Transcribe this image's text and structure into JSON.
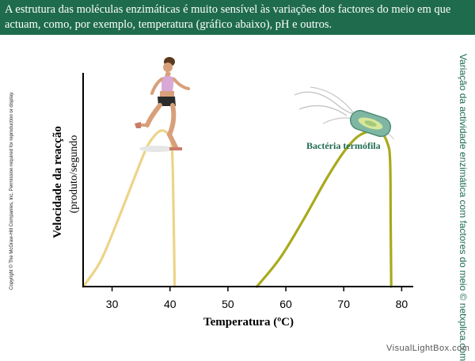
{
  "header": {
    "text": "A estrutura das moléculas enzimáticas é muito sensível às variações dos factores do meio em que actuam, como, por exemplo, temperatura (gráfico abaixo), pH e outros."
  },
  "side_credit": "Variação da actividade enzimática com factores do meio © netxplica.com",
  "copyright": "Copyright © The McGraw-Hill Companies, Inc. Permission required for reproduction or display.",
  "watermark": "VisualLightBox.com",
  "illustrations": {
    "runner_icon": "running-woman-icon",
    "bacteria_icon": "thermophilic-bacterium-icon",
    "bacteria_label": "Bactéria termófila"
  },
  "colors": {
    "header_bg": "#1e6b4e",
    "series_human": "#ecd488",
    "series_thermophile": "#a8aa1e",
    "axis": "#000000"
  },
  "chart_data": {
    "type": "line",
    "title": "",
    "xlabel": "Temperatura (ºC)",
    "ylabel": "Velocidade da reacção",
    "ylabel_sub": "(produto/segundo",
    "xlim": [
      25,
      82
    ],
    "ylim": [
      0,
      1
    ],
    "xticks": [
      30,
      40,
      50,
      60,
      70,
      80
    ],
    "grid": false,
    "series": [
      {
        "name": "",
        "color": "#ecd488",
        "x": [
          25,
          28,
          31,
          34,
          36,
          37.5,
          38.5,
          39.5,
          40.3,
          40.6,
          40.8
        ],
        "y": [
          0,
          0.16,
          0.42,
          0.7,
          0.88,
          0.96,
          0.985,
          0.97,
          0.91,
          0.5,
          0
        ]
      },
      {
        "name": "",
        "color": "#a8aa1e",
        "x": [
          55,
          59,
          63,
          67,
          70,
          72.5,
          75,
          76.5,
          77.5,
          78,
          78.1,
          78.2
        ],
        "y": [
          0,
          0.18,
          0.42,
          0.68,
          0.85,
          0.95,
          0.985,
          0.97,
          0.91,
          0.8,
          0.4,
          0
        ]
      }
    ]
  }
}
